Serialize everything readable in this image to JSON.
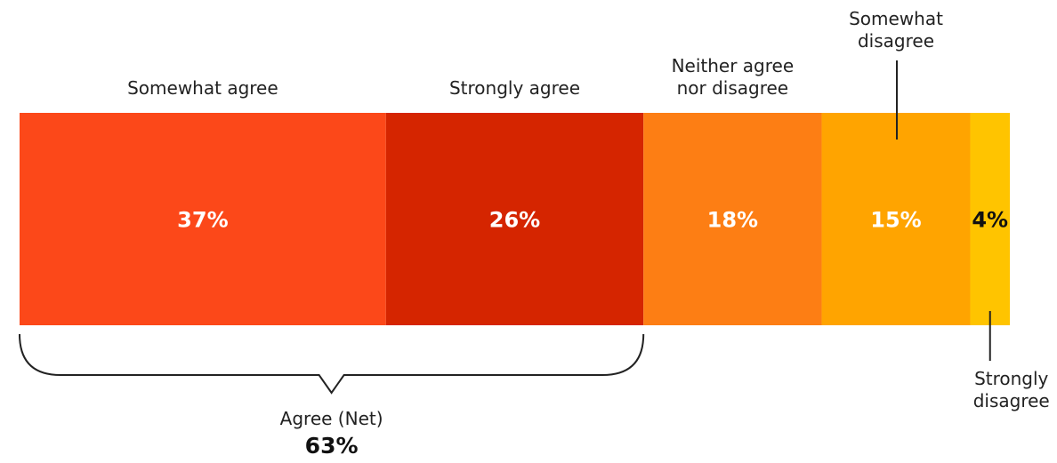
{
  "chart_data": {
    "type": "bar",
    "orientation": "horizontal-stacked",
    "title": "",
    "xlabel": "",
    "ylabel": "",
    "xlim": [
      0,
      100
    ],
    "grid": false,
    "legend": "none",
    "series": [
      {
        "name": "Somewhat agree",
        "label_lines": [
          "Somewhat agree"
        ],
        "value": 37,
        "value_label": "37%",
        "color": "#FC4819",
        "text_color": "#FFFFFF"
      },
      {
        "name": "Strongly agree",
        "label_lines": [
          "Strongly agree"
        ],
        "value": 26,
        "value_label": "26%",
        "color": "#D52500",
        "text_color": "#FFFFFF"
      },
      {
        "name": "Neither agree nor disagree",
        "label_lines": [
          "Neither agree",
          "nor disagree"
        ],
        "value": 18,
        "value_label": "18%",
        "color": "#FD7E14",
        "text_color": "#FFFFFF"
      },
      {
        "name": "Somewhat disagree",
        "label_lines": [
          "Somewhat",
          "disagree"
        ],
        "value": 15,
        "value_label": "15%",
        "color": "#FFA400",
        "text_color": "#FFFFFF"
      },
      {
        "name": "Strongly disagree",
        "label_lines": [
          "Strongly",
          "disagree"
        ],
        "value": 4,
        "value_label": "4%",
        "color": "#FFC400",
        "text_color": "#111111"
      }
    ],
    "net": {
      "label": "Agree (Net)",
      "value": 63,
      "value_label": "63%",
      "spans": [
        "Somewhat agree",
        "Strongly agree"
      ]
    }
  }
}
